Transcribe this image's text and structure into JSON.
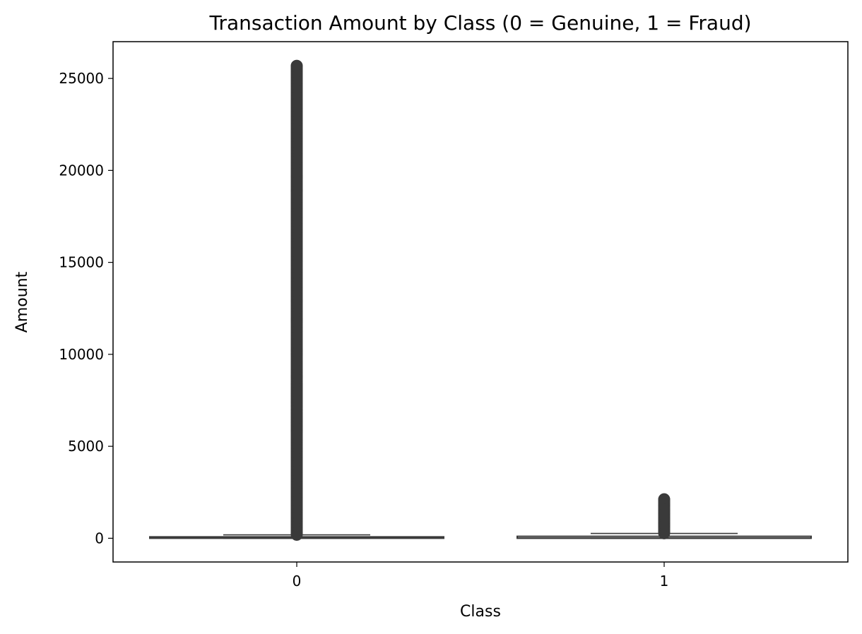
{
  "chart_data": {
    "type": "box",
    "title": "Transaction Amount by Class (0 = Genuine, 1 = Fraud)",
    "xlabel": "Class",
    "ylabel": "Amount",
    "categories": [
      "0",
      "1"
    ],
    "ylim": [
      -1290,
      27000
    ],
    "yticks": [
      0,
      5000,
      10000,
      15000,
      20000,
      25000
    ],
    "grid": false,
    "colors": {
      "box": "#3a3a3a",
      "axis": "#000000"
    },
    "boxes": [
      {
        "category": "0",
        "whisker_low": 0,
        "q1": 5.6,
        "median": 22,
        "q3": 77,
        "whisker_high": 185,
        "outliers_min": 186,
        "outliers_max": 25691,
        "outliers": [
          25691,
          19656,
          18910,
          12910,
          11898,
          11790,
          10199,
          10000,
          8790,
          8787,
          8360,
          8200,
          8050,
          7880,
          7712,
          7560,
          7400,
          7200,
          6980,
          6800,
          6600,
          6450,
          6300,
          6100,
          5900,
          5800
        ]
      },
      {
        "category": "1",
        "whisker_low": 0,
        "q1": 1,
        "median": 9.25,
        "q3": 105.9,
        "whisker_high": 262,
        "outliers_min": 265,
        "outliers_max": 2125,
        "outliers": [
          2125,
          1809,
          1504,
          1402,
          1335,
          1218,
          1096,
          996,
          925,
          829,
          776,
          720,
          634
        ]
      }
    ]
  }
}
